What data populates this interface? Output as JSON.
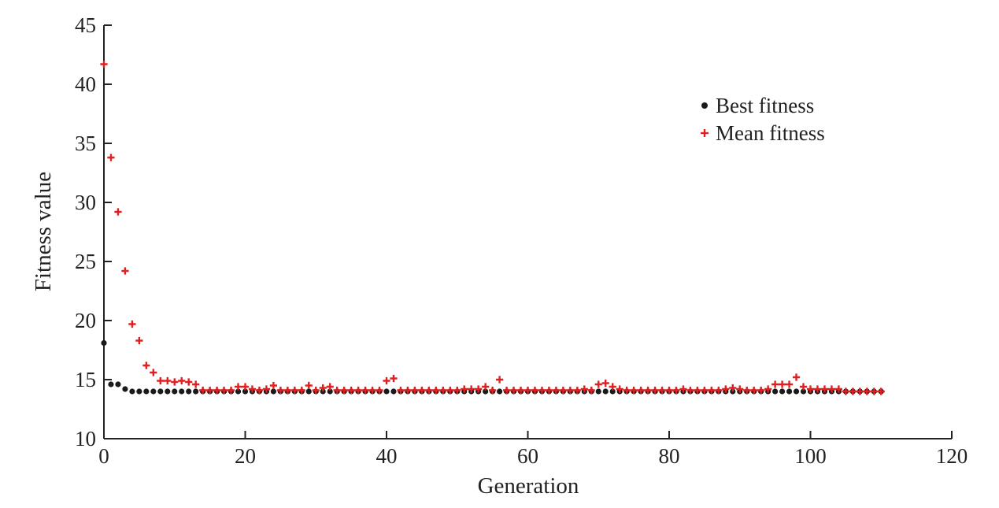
{
  "chart_data": {
    "type": "scatter",
    "title": "",
    "xlabel": "Generation",
    "ylabel": "Fitness value",
    "xlim": [
      0,
      120
    ],
    "ylim": [
      10,
      45
    ],
    "xticks": [
      0,
      20,
      40,
      60,
      80,
      100,
      120
    ],
    "yticks": [
      10,
      15,
      20,
      25,
      30,
      35,
      40,
      45
    ],
    "grid": false,
    "legend_position": "top-right",
    "series": [
      {
        "name": "Best fitness",
        "marker": "dot",
        "color": "#1a1a1a",
        "x": [
          0,
          1,
          2,
          3,
          4,
          5,
          6,
          7,
          8,
          9,
          10,
          11,
          12,
          13,
          14,
          15,
          16,
          17,
          18,
          19,
          20,
          21,
          22,
          23,
          24,
          25,
          26,
          27,
          28,
          29,
          30,
          31,
          32,
          33,
          34,
          35,
          36,
          37,
          38,
          39,
          40,
          41,
          42,
          43,
          44,
          45,
          46,
          47,
          48,
          49,
          50,
          51,
          52,
          53,
          54,
          55,
          56,
          57,
          58,
          59,
          60,
          61,
          62,
          63,
          64,
          65,
          66,
          67,
          68,
          69,
          70,
          71,
          72,
          73,
          74,
          75,
          76,
          77,
          78,
          79,
          80,
          81,
          82,
          83,
          84,
          85,
          86,
          87,
          88,
          89,
          90,
          91,
          92,
          93,
          94,
          95,
          96,
          97,
          98,
          99,
          100,
          101,
          102,
          103,
          104,
          105,
          106,
          107,
          108,
          109,
          110
        ],
        "y": [
          18.1,
          14.6,
          14.6,
          14.2,
          14.0,
          14.0,
          14.0,
          14.0,
          14.0,
          14.0,
          14.0,
          14.0,
          14.0,
          14.0,
          14.0,
          14.0,
          14.0,
          14.0,
          14.0,
          14.0,
          14.0,
          14.0,
          14.0,
          14.0,
          14.0,
          14.0,
          14.0,
          14.0,
          14.0,
          14.0,
          14.0,
          14.0,
          14.0,
          14.0,
          14.0,
          14.0,
          14.0,
          14.0,
          14.0,
          14.0,
          14.0,
          14.0,
          14.0,
          14.0,
          14.0,
          14.0,
          14.0,
          14.0,
          14.0,
          14.0,
          14.0,
          14.0,
          14.0,
          14.0,
          14.0,
          14.0,
          14.0,
          14.0,
          14.0,
          14.0,
          14.0,
          14.0,
          14.0,
          14.0,
          14.0,
          14.0,
          14.0,
          14.0,
          14.0,
          14.0,
          14.0,
          14.0,
          14.0,
          14.0,
          14.0,
          14.0,
          14.0,
          14.0,
          14.0,
          14.0,
          14.0,
          14.0,
          14.0,
          14.0,
          14.0,
          14.0,
          14.0,
          14.0,
          14.0,
          14.0,
          14.0,
          14.0,
          14.0,
          14.0,
          14.0,
          14.0,
          14.0,
          14.0,
          14.0,
          14.0,
          14.0,
          14.0,
          14.0,
          14.0,
          14.0,
          14.0,
          14.0,
          14.0,
          14.0,
          14.0,
          14.0
        ]
      },
      {
        "name": "Mean fitness",
        "marker": "plus",
        "color": "#e02020",
        "x": [
          0,
          1,
          2,
          3,
          4,
          5,
          6,
          7,
          8,
          9,
          10,
          11,
          12,
          13,
          14,
          15,
          16,
          17,
          18,
          19,
          20,
          21,
          22,
          23,
          24,
          25,
          26,
          27,
          28,
          29,
          30,
          31,
          32,
          33,
          34,
          35,
          36,
          37,
          38,
          39,
          40,
          41,
          42,
          43,
          44,
          45,
          46,
          47,
          48,
          49,
          50,
          51,
          52,
          53,
          54,
          55,
          56,
          57,
          58,
          59,
          60,
          61,
          62,
          63,
          64,
          65,
          66,
          67,
          68,
          69,
          70,
          71,
          72,
          73,
          74,
          75,
          76,
          77,
          78,
          79,
          80,
          81,
          82,
          83,
          84,
          85,
          86,
          87,
          88,
          89,
          90,
          91,
          92,
          93,
          94,
          95,
          96,
          97,
          98,
          99,
          100,
          101,
          102,
          103,
          104,
          105,
          106,
          107,
          108,
          109,
          110
        ],
        "y": [
          41.7,
          33.8,
          29.2,
          24.2,
          19.7,
          18.3,
          16.2,
          15.6,
          14.9,
          14.9,
          14.8,
          14.9,
          14.8,
          14.6,
          14.1,
          14.1,
          14.1,
          14.1,
          14.1,
          14.4,
          14.4,
          14.2,
          14.1,
          14.2,
          14.5,
          14.1,
          14.1,
          14.1,
          14.1,
          14.5,
          14.1,
          14.3,
          14.4,
          14.1,
          14.1,
          14.1,
          14.1,
          14.1,
          14.1,
          14.1,
          14.9,
          15.1,
          14.1,
          14.1,
          14.1,
          14.1,
          14.1,
          14.1,
          14.1,
          14.1,
          14.1,
          14.2,
          14.2,
          14.2,
          14.4,
          14.1,
          15.0,
          14.1,
          14.1,
          14.1,
          14.1,
          14.1,
          14.1,
          14.1,
          14.1,
          14.1,
          14.1,
          14.1,
          14.2,
          14.1,
          14.6,
          14.7,
          14.4,
          14.2,
          14.1,
          14.1,
          14.1,
          14.1,
          14.1,
          14.1,
          14.1,
          14.1,
          14.2,
          14.1,
          14.1,
          14.1,
          14.1,
          14.1,
          14.2,
          14.3,
          14.2,
          14.1,
          14.1,
          14.1,
          14.2,
          14.6,
          14.6,
          14.6,
          15.2,
          14.4,
          14.2,
          14.2,
          14.2,
          14.2,
          14.2,
          14.0,
          14.0,
          14.0,
          14.0,
          14.0,
          14.0
        ]
      }
    ]
  }
}
